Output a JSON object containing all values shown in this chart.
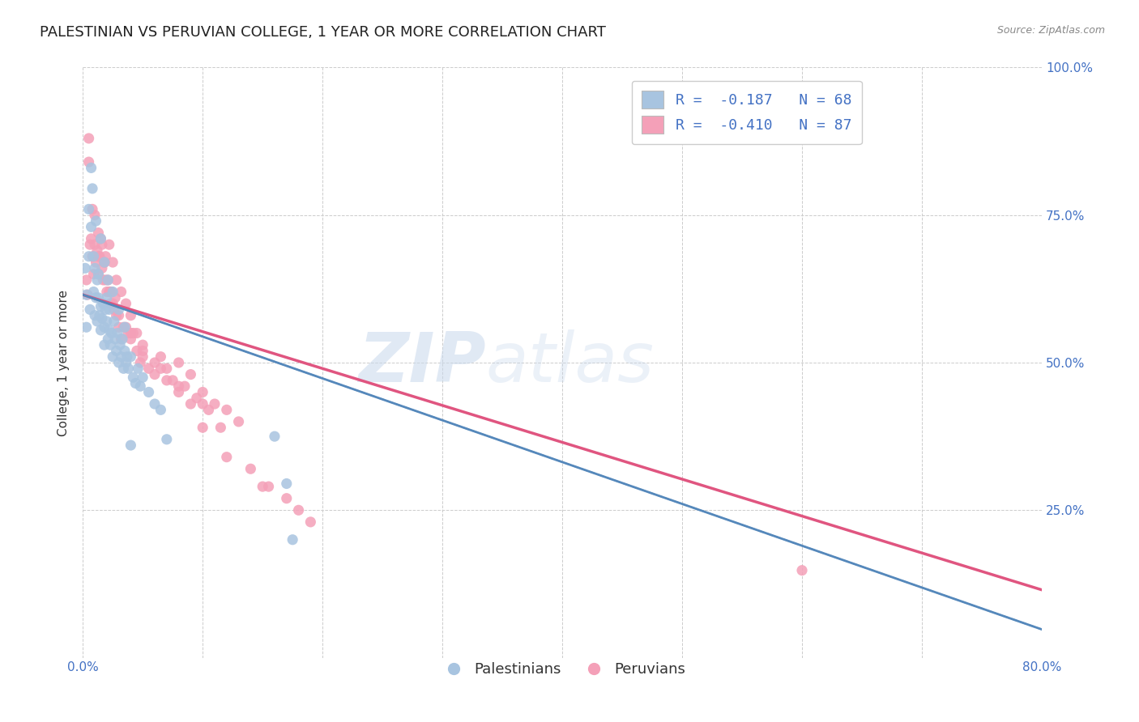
{
  "title": "PALESTINIAN VS PERUVIAN COLLEGE, 1 YEAR OR MORE CORRELATION CHART",
  "source": "Source: ZipAtlas.com",
  "ylabel": "College, 1 year or more",
  "xlim": [
    0.0,
    0.8
  ],
  "ylim": [
    0.0,
    1.0
  ],
  "xticks": [
    0.0,
    0.1,
    0.2,
    0.3,
    0.4,
    0.5,
    0.6,
    0.7,
    0.8
  ],
  "xticklabels": [
    "0.0%",
    "",
    "",
    "",
    "",
    "",
    "",
    "",
    "80.0%"
  ],
  "yticks": [
    0.0,
    0.25,
    0.5,
    0.75,
    1.0
  ],
  "yticklabels_right": [
    "",
    "25.0%",
    "50.0%",
    "75.0%",
    "100.0%"
  ],
  "watermark_zip": "ZIP",
  "watermark_atlas": "atlas",
  "blue_color": "#a8c4e0",
  "blue_line_color": "#5588bb",
  "pink_color": "#f4a0b8",
  "pink_line_color": "#e05580",
  "legend_label1": "R =  -0.187   N = 68",
  "legend_label2": "R =  -0.410   N = 87",
  "blue_line_x0": 0.0,
  "blue_line_y0": 0.615,
  "blue_line_x1": 0.8,
  "blue_line_y1": 0.048,
  "pink_line_x0": 0.0,
  "pink_line_y0": 0.615,
  "pink_line_x1": 0.8,
  "pink_line_y1": 0.115,
  "blue_scatter_x": [
    0.002,
    0.003,
    0.005,
    0.006,
    0.007,
    0.008,
    0.009,
    0.01,
    0.01,
    0.011,
    0.012,
    0.012,
    0.013,
    0.014,
    0.015,
    0.015,
    0.016,
    0.017,
    0.018,
    0.018,
    0.019,
    0.02,
    0.02,
    0.021,
    0.022,
    0.022,
    0.023,
    0.024,
    0.025,
    0.026,
    0.027,
    0.028,
    0.029,
    0.03,
    0.031,
    0.032,
    0.033,
    0.034,
    0.035,
    0.036,
    0.037,
    0.038,
    0.04,
    0.042,
    0.044,
    0.046,
    0.048,
    0.05,
    0.055,
    0.06,
    0.065,
    0.07,
    0.003,
    0.005,
    0.007,
    0.009,
    0.011,
    0.013,
    0.015,
    0.018,
    0.021,
    0.025,
    0.03,
    0.035,
    0.04,
    0.16,
    0.17,
    0.175
  ],
  "blue_scatter_y": [
    0.66,
    0.615,
    0.68,
    0.59,
    0.83,
    0.795,
    0.62,
    0.58,
    0.66,
    0.61,
    0.57,
    0.64,
    0.61,
    0.58,
    0.595,
    0.555,
    0.575,
    0.6,
    0.56,
    0.53,
    0.59,
    0.57,
    0.61,
    0.54,
    0.555,
    0.59,
    0.53,
    0.55,
    0.51,
    0.57,
    0.54,
    0.52,
    0.55,
    0.5,
    0.53,
    0.51,
    0.54,
    0.49,
    0.52,
    0.5,
    0.51,
    0.49,
    0.51,
    0.475,
    0.465,
    0.49,
    0.46,
    0.475,
    0.45,
    0.43,
    0.42,
    0.37,
    0.56,
    0.76,
    0.73,
    0.68,
    0.74,
    0.65,
    0.71,
    0.67,
    0.64,
    0.62,
    0.59,
    0.56,
    0.36,
    0.375,
    0.295,
    0.2
  ],
  "pink_scatter_x": [
    0.003,
    0.004,
    0.005,
    0.006,
    0.007,
    0.008,
    0.009,
    0.01,
    0.011,
    0.012,
    0.013,
    0.014,
    0.015,
    0.016,
    0.017,
    0.018,
    0.019,
    0.02,
    0.021,
    0.022,
    0.023,
    0.024,
    0.025,
    0.026,
    0.027,
    0.028,
    0.03,
    0.032,
    0.034,
    0.036,
    0.038,
    0.04,
    0.042,
    0.045,
    0.048,
    0.05,
    0.055,
    0.06,
    0.065,
    0.07,
    0.075,
    0.08,
    0.085,
    0.09,
    0.095,
    0.1,
    0.105,
    0.11,
    0.12,
    0.13,
    0.005,
    0.008,
    0.01,
    0.013,
    0.016,
    0.019,
    0.022,
    0.025,
    0.028,
    0.032,
    0.036,
    0.04,
    0.045,
    0.05,
    0.06,
    0.07,
    0.08,
    0.09,
    0.1,
    0.115,
    0.013,
    0.018,
    0.023,
    0.03,
    0.04,
    0.05,
    0.065,
    0.08,
    0.1,
    0.12,
    0.14,
    0.155,
    0.17,
    0.18,
    0.19,
    0.6,
    0.15
  ],
  "pink_scatter_y": [
    0.64,
    0.615,
    0.84,
    0.7,
    0.71,
    0.68,
    0.65,
    0.7,
    0.67,
    0.69,
    0.65,
    0.68,
    0.71,
    0.66,
    0.64,
    0.67,
    0.64,
    0.62,
    0.64,
    0.62,
    0.6,
    0.62,
    0.6,
    0.59,
    0.61,
    0.58,
    0.56,
    0.54,
    0.56,
    0.56,
    0.55,
    0.54,
    0.55,
    0.52,
    0.5,
    0.52,
    0.49,
    0.48,
    0.51,
    0.49,
    0.47,
    0.5,
    0.46,
    0.48,
    0.44,
    0.45,
    0.42,
    0.43,
    0.42,
    0.4,
    0.88,
    0.76,
    0.75,
    0.72,
    0.7,
    0.68,
    0.7,
    0.67,
    0.64,
    0.62,
    0.6,
    0.58,
    0.55,
    0.53,
    0.5,
    0.47,
    0.46,
    0.43,
    0.43,
    0.39,
    0.68,
    0.67,
    0.62,
    0.58,
    0.55,
    0.51,
    0.49,
    0.45,
    0.39,
    0.34,
    0.32,
    0.29,
    0.27,
    0.25,
    0.23,
    0.148,
    0.29
  ]
}
